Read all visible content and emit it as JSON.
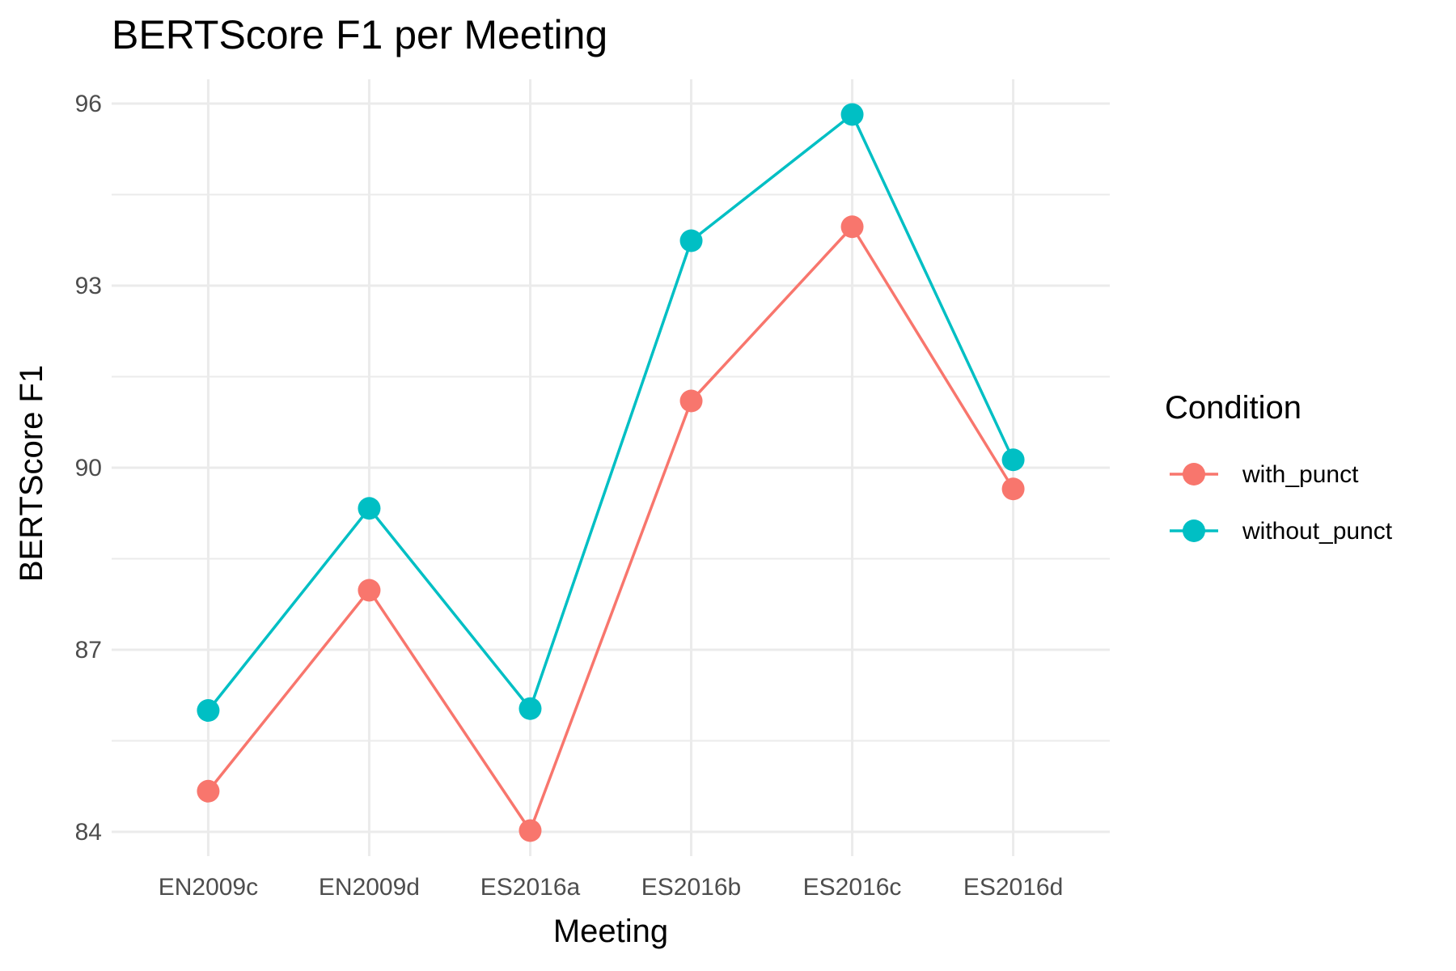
{
  "chart_data": {
    "type": "line",
    "title": "BERTScore F1 per Meeting",
    "xlabel": "Meeting",
    "ylabel": "BERTScore F1",
    "categories": [
      "EN2009c",
      "EN2009d",
      "ES2016a",
      "ES2016b",
      "ES2016c",
      "ES2016d"
    ],
    "ylim": [
      83.6,
      96.4
    ],
    "yticks": [
      84,
      87,
      90,
      93,
      96
    ],
    "grid": true,
    "legend": {
      "title": "Condition",
      "position": "right"
    },
    "series": [
      {
        "name": "with_punct",
        "color": "#F8766D",
        "values": [
          84.67,
          87.98,
          84.02,
          91.1,
          93.97,
          89.65
        ]
      },
      {
        "name": "without_punct",
        "color": "#00BFC4",
        "values": [
          86.0,
          89.33,
          86.03,
          93.74,
          95.82,
          90.13
        ]
      }
    ]
  }
}
